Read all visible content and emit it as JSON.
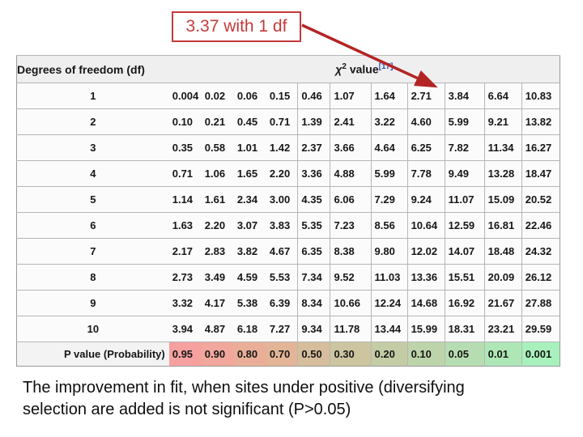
{
  "callout": {
    "label": "3.37 with 1 df"
  },
  "table": {
    "header": {
      "df_label": "Degrees of freedom (df)",
      "chi_symbol": "χ",
      "chi_exponent": "2",
      "chi_word": "value",
      "citation": "[17]"
    },
    "rows": [
      {
        "df": "1",
        "values": [
          "0.004",
          "0.02",
          "0.06",
          "0.15",
          "0.46",
          "1.07",
          "1.64",
          "2.71",
          "3.84",
          "6.64",
          "10.83"
        ]
      },
      {
        "df": "2",
        "values": [
          "0.10",
          "0.21",
          "0.45",
          "0.71",
          "1.39",
          "2.41",
          "3.22",
          "4.60",
          "5.99",
          "9.21",
          "13.82"
        ]
      },
      {
        "df": "3",
        "values": [
          "0.35",
          "0.58",
          "1.01",
          "1.42",
          "2.37",
          "3.66",
          "4.64",
          "6.25",
          "7.82",
          "11.34",
          "16.27"
        ]
      },
      {
        "df": "4",
        "values": [
          "0.71",
          "1.06",
          "1.65",
          "2.20",
          "3.36",
          "4.88",
          "5.99",
          "7.78",
          "9.49",
          "13.28",
          "18.47"
        ]
      },
      {
        "df": "5",
        "values": [
          "1.14",
          "1.61",
          "2.34",
          "3.00",
          "4.35",
          "6.06",
          "7.29",
          "9.24",
          "11.07",
          "15.09",
          "20.52"
        ]
      },
      {
        "df": "6",
        "values": [
          "1.63",
          "2.20",
          "3.07",
          "3.83",
          "5.35",
          "7.23",
          "8.56",
          "10.64",
          "12.59",
          "16.81",
          "22.46"
        ]
      },
      {
        "df": "7",
        "values": [
          "2.17",
          "2.83",
          "3.82",
          "4.67",
          "6.35",
          "8.38",
          "9.80",
          "12.02",
          "14.07",
          "18.48",
          "24.32"
        ]
      },
      {
        "df": "8",
        "values": [
          "2.73",
          "3.49",
          "4.59",
          "5.53",
          "7.34",
          "9.52",
          "11.03",
          "13.36",
          "15.51",
          "20.09",
          "26.12"
        ]
      },
      {
        "df": "9",
        "values": [
          "3.32",
          "4.17",
          "5.38",
          "6.39",
          "8.34",
          "10.66",
          "12.24",
          "14.68",
          "16.92",
          "21.67",
          "27.88"
        ]
      },
      {
        "df": "10",
        "values": [
          "3.94",
          "4.87",
          "6.18",
          "7.27",
          "9.34",
          "11.78",
          "13.44",
          "15.99",
          "18.31",
          "23.21",
          "29.59"
        ]
      }
    ],
    "p_row": {
      "label": "P value (Probability)",
      "values": [
        "0.95",
        "0.90",
        "0.80",
        "0.70",
        "0.50",
        "0.30",
        "0.20",
        "0.10",
        "0.05",
        "0.01",
        "0.001"
      ],
      "colors": [
        "#f7a0a0",
        "#f1a79c",
        "#eaae98",
        "#e3b596",
        "#d6bd9c",
        "#ccc5a0",
        "#c4cca6",
        "#bdd4ab",
        "#b6ddb1",
        "#aee7b6",
        "#a8f1bc"
      ]
    }
  },
  "caption": {
    "line1": "The improvement in fit, when sites under positive (diversifying",
    "line2": "selection are added is not significant (P>0.05)"
  },
  "colors": {
    "callout_red": "#c43a3a",
    "arrow_red": "#b32424",
    "citation_blue": "#3355bb"
  }
}
